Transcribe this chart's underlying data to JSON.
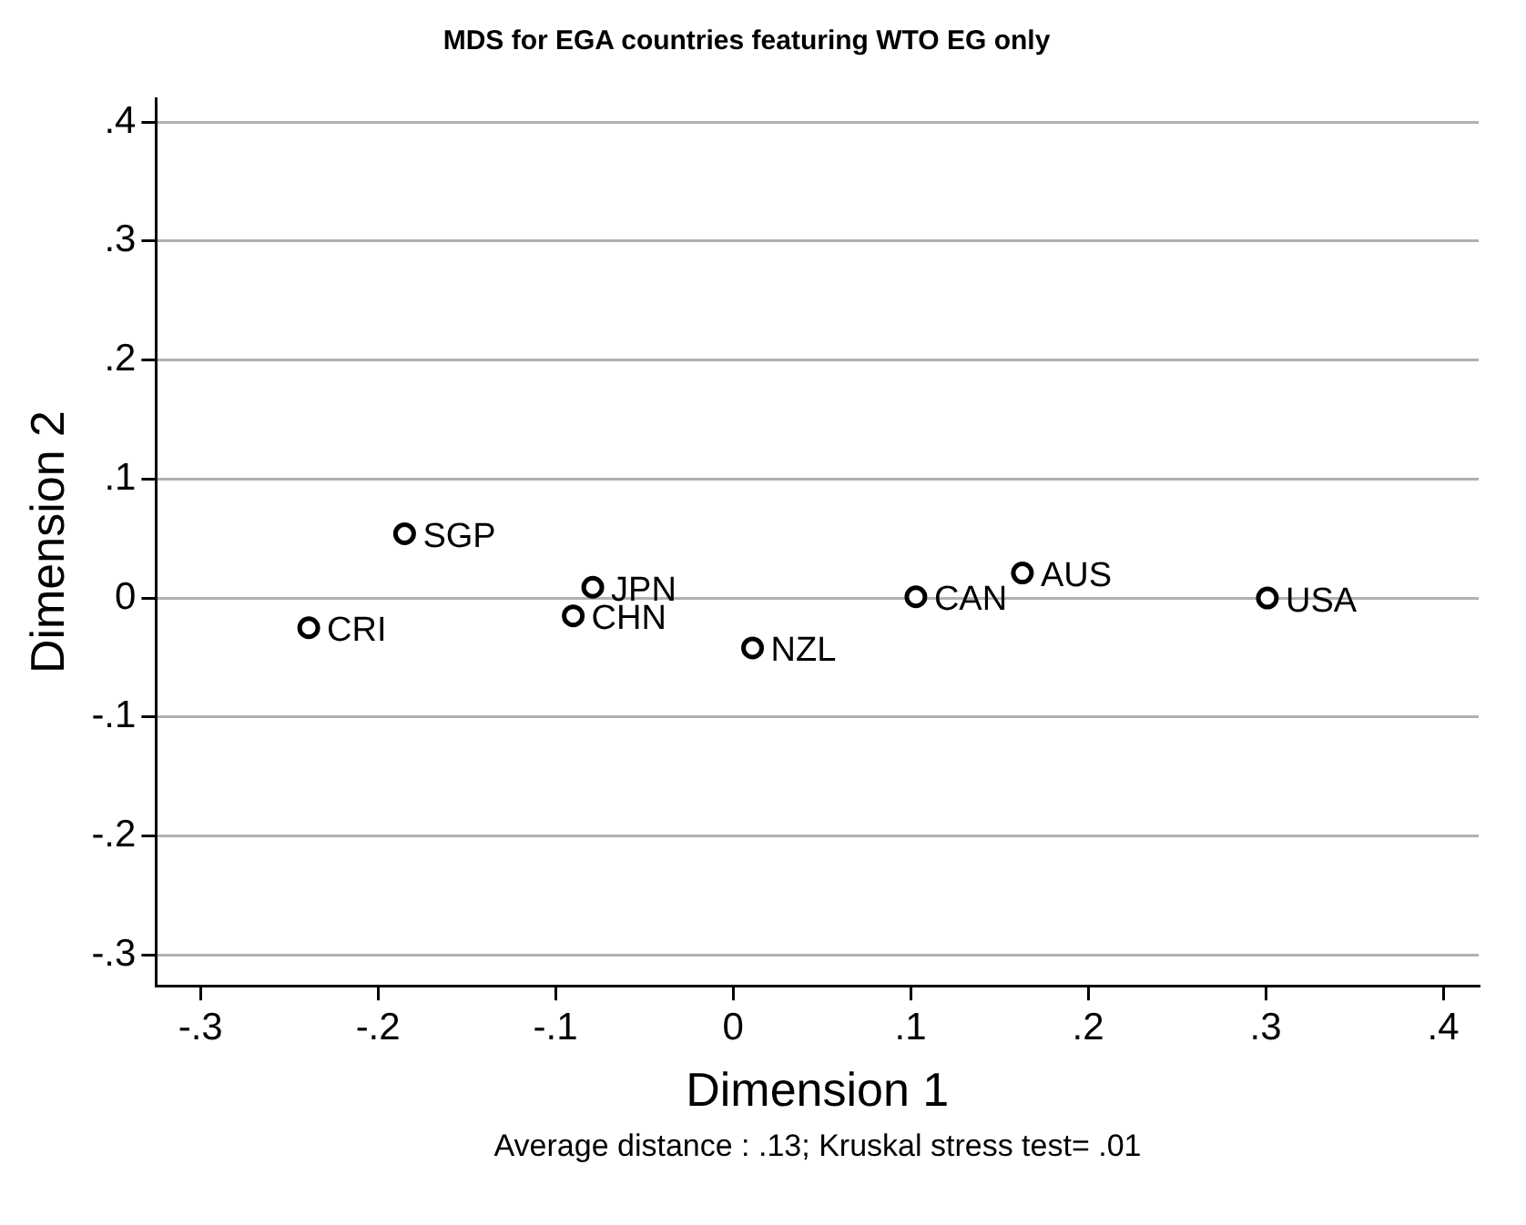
{
  "chart_data": {
    "type": "scatter",
    "title": "MDS for EGA countries featuring WTO EG only",
    "xlabel": "Dimension 1",
    "ylabel": "Dimension 2",
    "x": [
      -0.185,
      -0.239,
      -0.079,
      -0.09,
      0.011,
      0.103,
      0.163,
      0.301
    ],
    "series": [
      {
        "color": "#000000",
        "values": [
          0.054,
          -0.025,
          0.009,
          -0.015,
          -0.042,
          0.001,
          0.021,
          0.0
        ]
      }
    ],
    "marker": "circle",
    "grid": "y",
    "legend": false,
    "xlim": [
      -0.325,
      0.42
    ],
    "ylim": [
      -0.326,
      0.42
    ],
    "xticks": [
      {
        "value": -0.3,
        "label": "-.3"
      },
      {
        "value": -0.2,
        "label": "-.2"
      },
      {
        "value": -0.1,
        "label": "-.1"
      },
      0,
      {
        "value": 0.1,
        "label": ".1"
      },
      {
        "value": 0.2,
        "label": ".2"
      },
      {
        "value": 0.3,
        "label": ".3"
      },
      {
        "value": 0.4,
        "label": ".4"
      }
    ],
    "yticks": [
      {
        "value": -0.3,
        "label": "-.3"
      },
      {
        "value": -0.2,
        "label": "-.2"
      },
      {
        "value": -0.1,
        "label": "-.1"
      },
      0,
      {
        "value": 0.1,
        "label": ".1"
      },
      {
        "value": 0.2,
        "label": ".2"
      },
      {
        "value": 0.3,
        "label": ".3"
      },
      {
        "value": 0.4,
        "label": ".4"
      }
    ],
    "annotations": [
      {
        "text": "SGP",
        "x": -0.185,
        "y": 0.054
      },
      {
        "text": "CRI",
        "x": -0.239,
        "y": -0.025
      },
      {
        "text": "JPN",
        "x": -0.079,
        "y": 0.009
      },
      {
        "text": "CHN",
        "x": -0.09,
        "y": -0.015
      },
      {
        "text": "NZL",
        "x": 0.011,
        "y": -0.042
      },
      {
        "text": "CAN",
        "x": 0.103,
        "y": 0.001
      },
      {
        "text": "AUS",
        "x": 0.163,
        "y": 0.021
      },
      {
        "text": "USA",
        "x": 0.301,
        "y": 0.0
      },
      "Average distance : .13; Kruskal stress test= .01"
    ]
  }
}
